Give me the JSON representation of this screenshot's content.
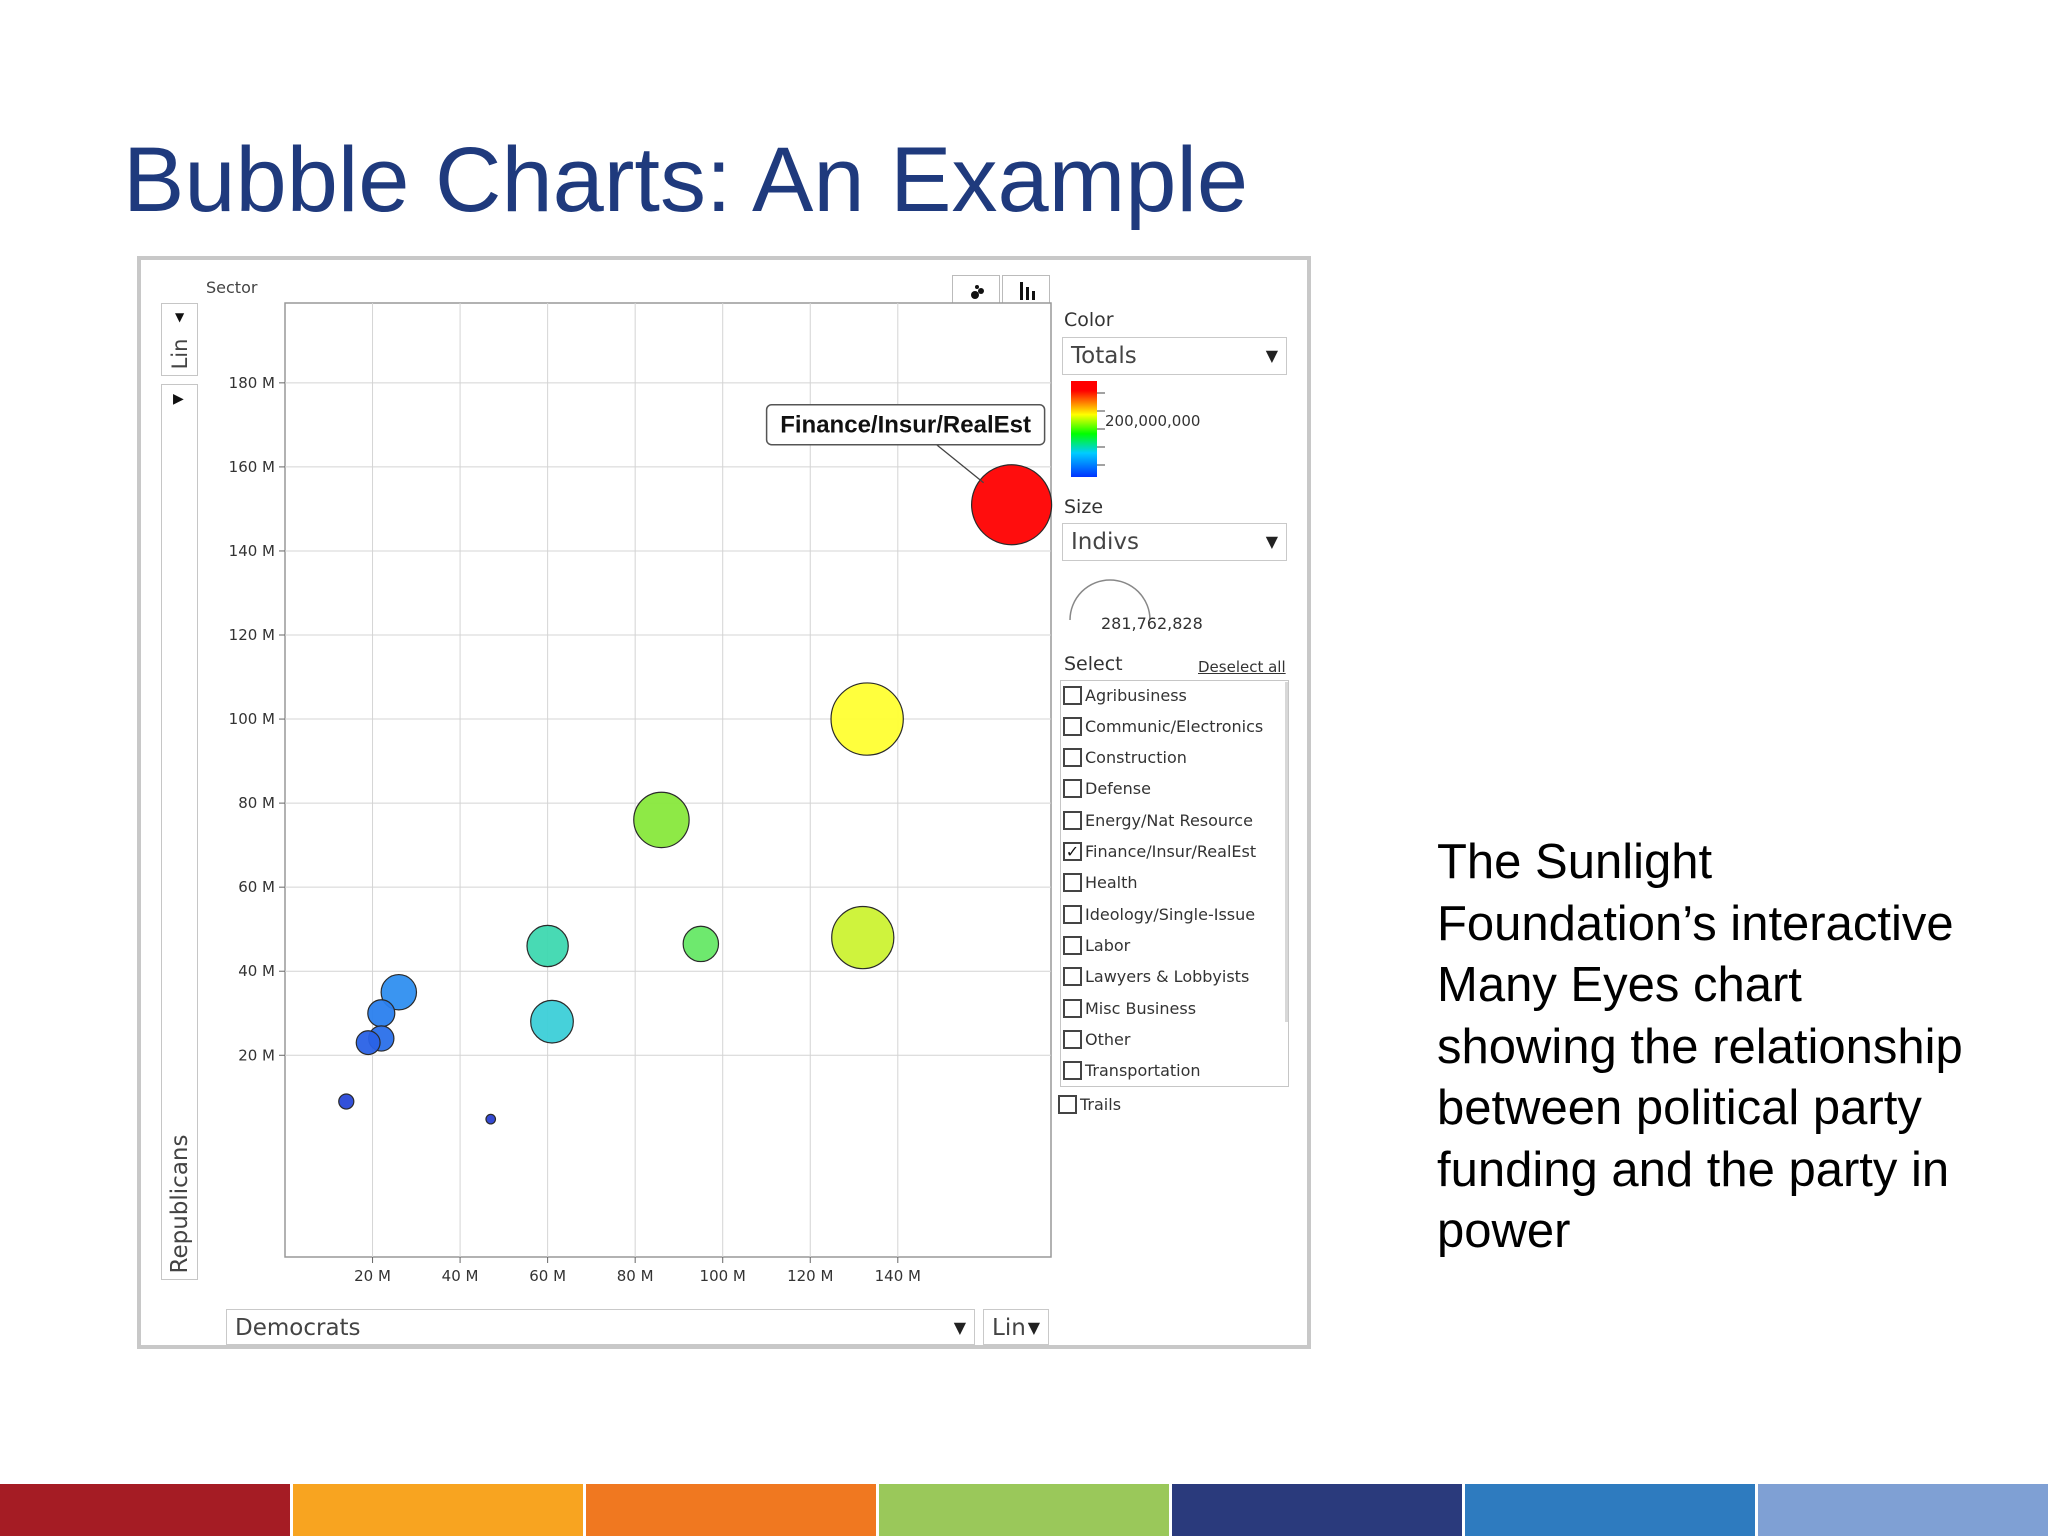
{
  "slide": {
    "title": "Bubble Charts:  An Example",
    "side_text": "The Sunlight Foundation’s interactive Many Eyes chart showing the relationship between political party funding and the party in power",
    "bottom_bar_colors": [
      "#a51c24",
      "#f8a420",
      "#f07820",
      "#9ac85a",
      "#2a3a7c",
      "#2e7bbf",
      "#7fa0d4"
    ]
  },
  "controls": {
    "sector_label": "Sector",
    "y_scale_label": "Lin",
    "y_scale_arrow": "▼",
    "play_icon": "▶",
    "y_axis_select": "Republicans",
    "x_axis_select": "Democrats",
    "x_scale_select": "Lin",
    "color_label": "Color",
    "color_select": "Totals",
    "color_max_label": "200,000,000",
    "size_label": "Size",
    "size_select": "Indivs",
    "size_max_label": "281,762,828",
    "select_label": "Select",
    "deselect_all": "Deselect all",
    "dropdown_arrow": "▼",
    "checkmark": "✓",
    "trails_label": "Trails",
    "scatter_view_icon": "bubble-view-icon",
    "bar_view_icon": "bar-view-icon"
  },
  "sectors": [
    {
      "label": "Agribusiness",
      "checked": false
    },
    {
      "label": "Communic/Electronics",
      "checked": false
    },
    {
      "label": "Construction",
      "checked": false
    },
    {
      "label": "Defense",
      "checked": false
    },
    {
      "label": "Energy/Nat Resource",
      "checked": false
    },
    {
      "label": "Finance/Insur/RealEst",
      "checked": true
    },
    {
      "label": "Health",
      "checked": false
    },
    {
      "label": "Ideology/Single-Issue",
      "checked": false
    },
    {
      "label": "Labor",
      "checked": false
    },
    {
      "label": "Lawyers & Lobbyists",
      "checked": false
    },
    {
      "label": "Misc Business",
      "checked": false
    },
    {
      "label": "Other",
      "checked": false
    },
    {
      "label": "Transportation",
      "checked": false
    }
  ],
  "chart_data": {
    "type": "scatter",
    "title": "",
    "xlabel": "Democrats",
    "ylabel": "Republicans",
    "xlim": [
      0,
      175000000
    ],
    "ylim": [
      -28000000,
      199000000
    ],
    "x_ticks": [
      20000000,
      40000000,
      60000000,
      80000000,
      100000000,
      120000000,
      140000000
    ],
    "x_tick_labels": [
      "20 M",
      "40 M",
      "60 M",
      "80 M",
      "100 M",
      "120 M",
      "140 M"
    ],
    "y_ticks": [
      20000000,
      40000000,
      60000000,
      80000000,
      100000000,
      120000000,
      140000000,
      160000000,
      180000000
    ],
    "y_tick_labels": [
      "20 M",
      "40 M",
      "60 M",
      "80 M",
      "100 M",
      "120 M",
      "140 M",
      "160 M",
      "180 M"
    ],
    "grid": true,
    "color_by": "Totals",
    "size_by": "Indivs",
    "color_max": 200000000,
    "size_max": 281762828,
    "callout": "Finance/Insur/RealEst",
    "points": [
      {
        "x": 166000000,
        "y": 151000000,
        "size": 281762828,
        "color": "#ff0000",
        "label": "Finance/Insur/RealEst"
      },
      {
        "x": 133000000,
        "y": 100000000,
        "size": 230000000,
        "color": "#ffff33"
      },
      {
        "x": 132000000,
        "y": 48000000,
        "size": 170000000,
        "color": "#ccf233"
      },
      {
        "x": 86000000,
        "y": 76000000,
        "size": 135000000,
        "color": "#88e83c"
      },
      {
        "x": 95000000,
        "y": 46500000,
        "size": 55000000,
        "color": "#66e866"
      },
      {
        "x": 60000000,
        "y": 46000000,
        "size": 75000000,
        "color": "#3ed8b0"
      },
      {
        "x": 61000000,
        "y": 28000000,
        "size": 80000000,
        "color": "#3ccfd8"
      },
      {
        "x": 26000000,
        "y": 35000000,
        "size": 55000000,
        "color": "#2f8ff0"
      },
      {
        "x": 22000000,
        "y": 30000000,
        "size": 32000000,
        "color": "#2a7fee"
      },
      {
        "x": 22000000,
        "y": 24000000,
        "size": 28000000,
        "color": "#2a70ea"
      },
      {
        "x": 19000000,
        "y": 23000000,
        "size": 25000000,
        "color": "#2a62e6"
      },
      {
        "x": 14000000,
        "y": 9000000,
        "size": 10000000,
        "color": "#2848d8"
      },
      {
        "x": 47000000,
        "y": 4800000,
        "size": 4000000,
        "color": "#2a40d0"
      }
    ]
  }
}
